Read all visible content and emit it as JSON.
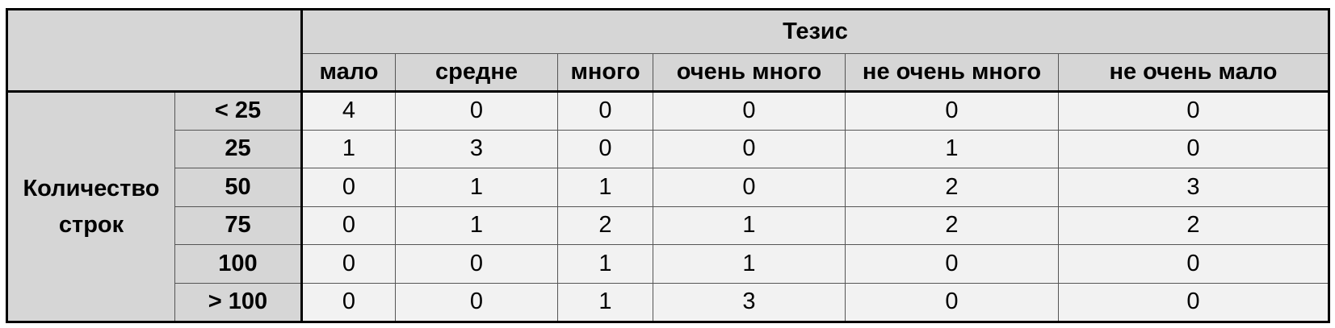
{
  "chart_data": {
    "type": "table",
    "column_group_label": "Тезис",
    "row_group_label": [
      "Количество",
      "строк"
    ],
    "columns": [
      "мало",
      "средне",
      "много",
      "очень много",
      "не очень много",
      "не очень мало"
    ],
    "rows": [
      {
        "label": "< 25",
        "values": [
          "4",
          "0",
          "0",
          "0",
          "0",
          "0"
        ]
      },
      {
        "label": "25",
        "values": [
          "1",
          "3",
          "0",
          "0",
          "1",
          "0"
        ]
      },
      {
        "label": "50",
        "values": [
          "0",
          "1",
          "1",
          "0",
          "2",
          "3"
        ]
      },
      {
        "label": "75",
        "values": [
          "0",
          "1",
          "2",
          "1",
          "2",
          "2"
        ]
      },
      {
        "label": "100",
        "values": [
          "0",
          "0",
          "1",
          "1",
          "0",
          "0"
        ]
      },
      {
        "label": "> 100",
        "values": [
          "0",
          "0",
          "1",
          "3",
          "0",
          "0"
        ]
      }
    ]
  },
  "colors": {
    "header_fill": "#d6d6d6",
    "cell_fill": "#f2f2f2",
    "border": "#555555",
    "frame": "#000000"
  }
}
